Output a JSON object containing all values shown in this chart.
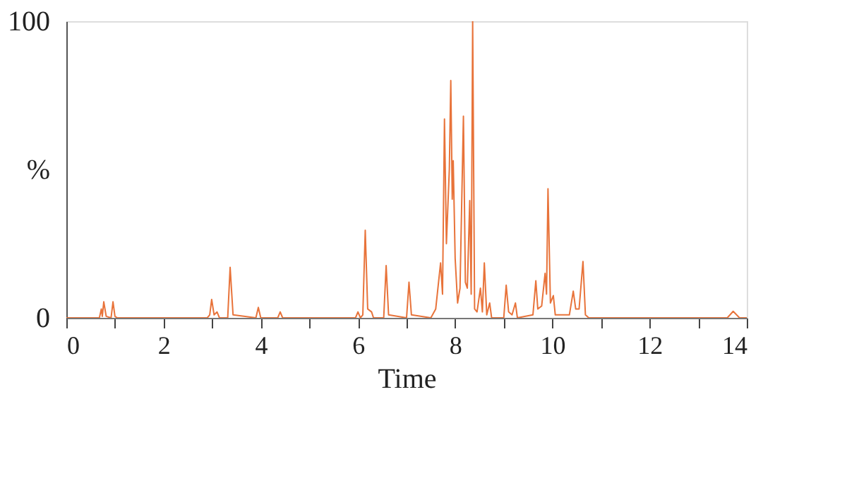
{
  "chart_data": {
    "type": "line",
    "xlabel": "Time",
    "x": [
      0,
      0.68,
      0.72,
      0.74,
      0.77,
      0.82,
      0.92,
      0.96,
      1.0,
      1.05,
      2.9,
      2.95,
      2.99,
      3.04,
      3.1,
      3.15,
      3.32,
      3.37,
      3.43,
      3.9,
      3.95,
      4.0,
      4.35,
      4.4,
      4.45,
      5.95,
      6.0,
      6.05,
      6.1,
      6.15,
      6.2,
      6.28,
      6.32,
      6.53,
      6.58,
      6.63,
      7.0,
      7.05,
      7.1,
      7.5,
      7.6,
      7.7,
      7.74,
      7.78,
      7.82,
      7.88,
      7.91,
      7.94,
      7.96,
      8.0,
      8.05,
      8.1,
      8.17,
      8.21,
      8.25,
      8.3,
      8.33,
      8.36,
      8.4,
      8.45,
      8.52,
      8.56,
      8.6,
      8.65,
      8.71,
      8.75,
      9.0,
      9.05,
      9.1,
      9.17,
      9.24,
      9.28,
      9.6,
      9.66,
      9.7,
      9.78,
      9.85,
      9.88,
      9.91,
      9.96,
      10.02,
      10.06,
      10.35,
      10.43,
      10.48,
      10.55,
      10.63,
      10.68,
      10.75,
      13.6,
      13.72,
      13.85,
      14
    ],
    "series": [
      {
        "color": "#e8733a",
        "values": [
          0,
          0,
          3,
          0.5,
          5.4,
          0.5,
          0,
          5.4,
          0.5,
          0,
          0,
          1,
          6.2,
          1,
          2,
          0,
          0,
          17,
          1,
          0,
          3.5,
          0,
          0,
          2,
          0,
          0,
          2,
          0,
          1,
          29.5,
          3,
          2,
          0,
          0,
          17.6,
          1,
          0,
          12,
          1,
          0,
          3,
          18.5,
          8,
          67,
          25,
          50,
          80,
          40,
          53,
          20,
          5,
          10,
          68,
          12,
          10,
          39.5,
          8,
          100,
          3,
          2,
          10,
          2,
          18.5,
          1,
          5,
          0,
          0,
          11,
          2,
          1,
          5,
          0,
          1,
          12.5,
          3,
          4,
          15,
          8,
          43.5,
          5,
          7.5,
          1,
          1,
          9,
          3,
          3,
          19,
          1,
          0,
          0,
          2.2,
          0,
          0
        ]
      }
    ],
    "xlim": [
      0,
      14
    ],
    "xticks": [
      0,
      {
        "value": 1,
        "label": null
      },
      2,
      {
        "value": 3,
        "label": null
      },
      4,
      {
        "value": 5,
        "label": null
      },
      6,
      {
        "value": 7,
        "label": null
      },
      8,
      {
        "value": 9,
        "label": null
      },
      10,
      {
        "value": 11,
        "label": null
      },
      12,
      {
        "value": 13,
        "label": null
      },
      14
    ],
    "ylim": [
      0,
      100
    ],
    "yticks": [
      0,
      {
        "value": 50,
        "label": "%"
      },
      100
    ],
    "grid": false,
    "marker": "none",
    "line_style": "solid"
  }
}
